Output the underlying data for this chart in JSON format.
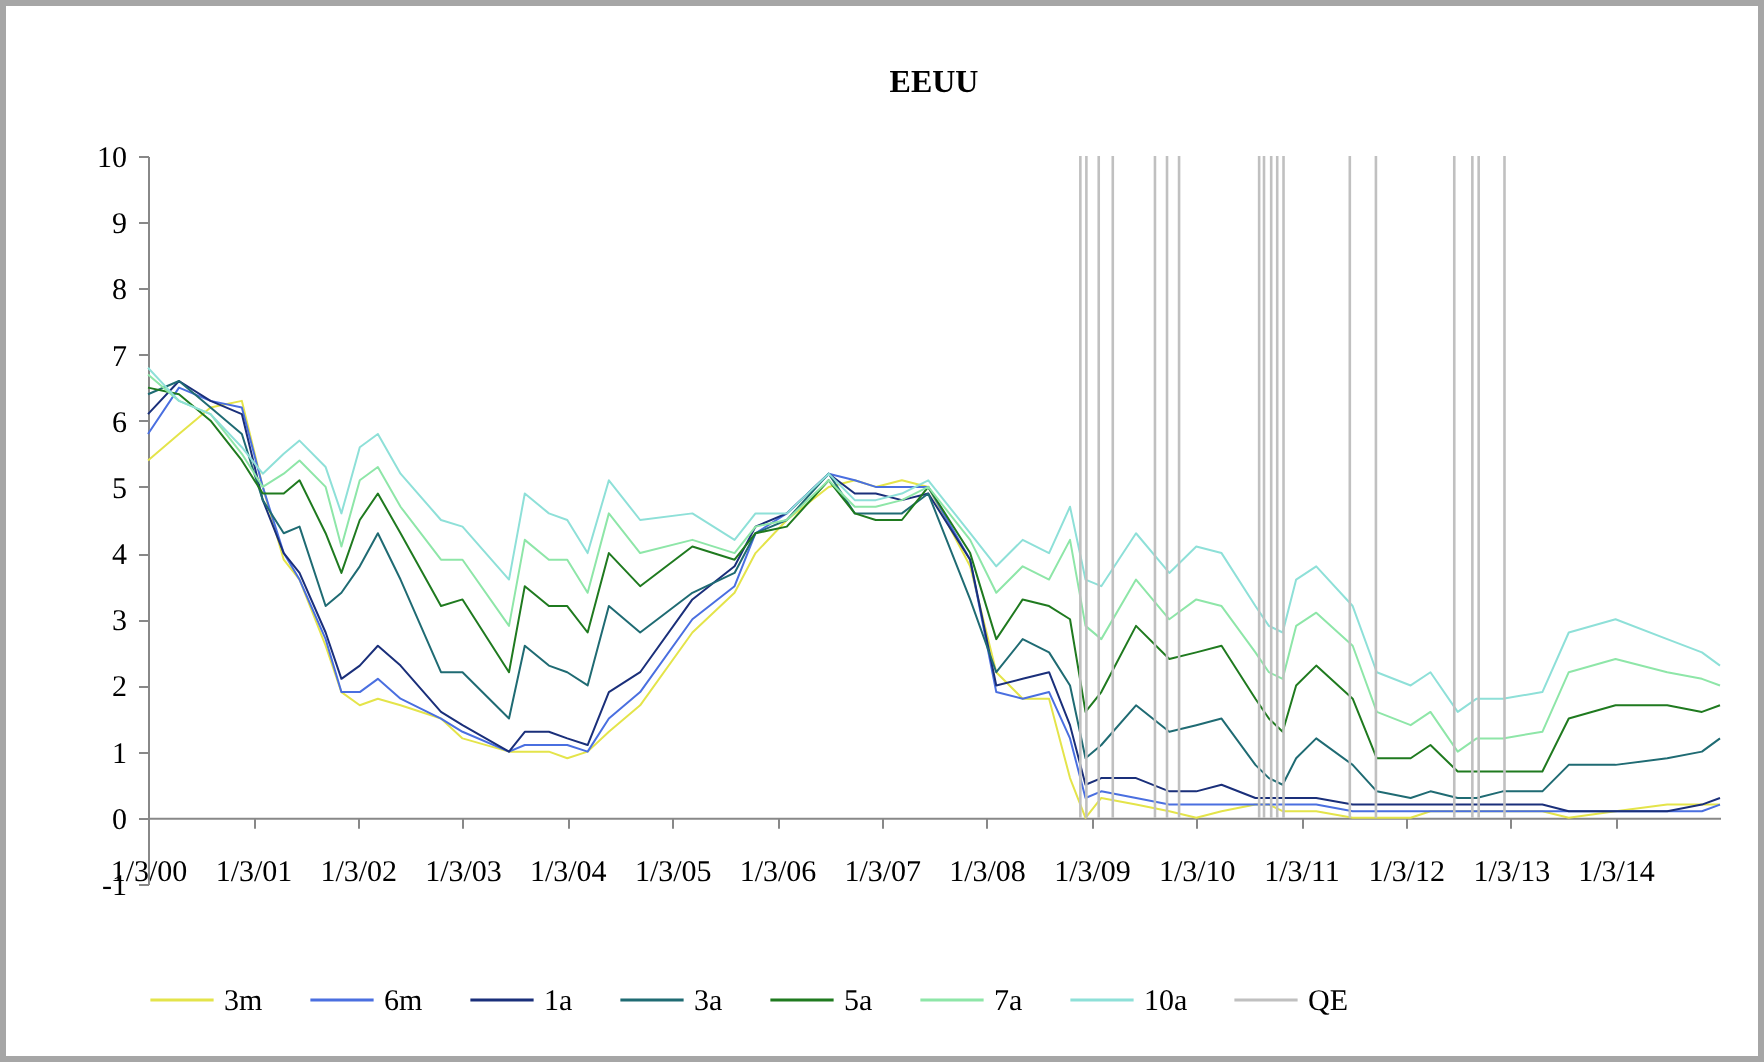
{
  "chart_data": {
    "type": "line",
    "title": "EEUU",
    "x": [
      "2000-01-03",
      "2000-04-20",
      "2000-08-08",
      "2000-11-25",
      "2001-02-06",
      "2001-04-20",
      "2001-06-14",
      "2001-09-13",
      "2001-11-07",
      "2002-01-10",
      "2002-03-14",
      "2002-06-01",
      "2002-10-20",
      "2003-01-03",
      "2003-06-14",
      "2003-08-08",
      "2003-10-31",
      "2004-01-03",
      "2004-03-14",
      "2004-05-27",
      "2004-09-13",
      "2005-03-14",
      "2005-08-08",
      "2005-10-20",
      "2006-02-06",
      "2006-07-02",
      "2006-10-01",
      "2006-12-13",
      "2007-03-14",
      "2007-06-14",
      "2007-11-07",
      "2008-02-06",
      "2008-05-08",
      "2008-08-08",
      "2008-10-20",
      "2008-12-13",
      "2009-02-06",
      "2009-06-07",
      "2009-10-01",
      "2010-01-03",
      "2010-04-01",
      "2010-07-28",
      "2010-09-13",
      "2010-10-31",
      "2010-12-17",
      "2011-02-25",
      "2011-07-02",
      "2011-09-24",
      "2012-01-20",
      "2012-03-29",
      "2012-07-02",
      "2012-09-06",
      "2012-12-06",
      "2013-04-23",
      "2013-07-24",
      "2014-01-03",
      "2014-07-02",
      "2014-10-31",
      "2015-01-02"
    ],
    "series": [
      {
        "name": "3m",
        "color": "#e4e44a",
        "values": [
          5.4,
          5.8,
          6.2,
          6.3,
          5.0,
          3.9,
          3.6,
          2.6,
          1.9,
          1.7,
          1.8,
          1.7,
          1.5,
          1.2,
          1.0,
          1.0,
          1.0,
          0.9,
          1.0,
          1.3,
          1.7,
          2.8,
          3.4,
          4.0,
          4.5,
          5.0,
          5.1,
          5.0,
          5.1,
          5.0,
          3.8,
          2.2,
          1.8,
          1.8,
          0.6,
          0.0,
          0.3,
          0.2,
          0.1,
          0.0,
          0.1,
          0.2,
          0.2,
          0.1,
          0.1,
          0.1,
          0.0,
          0.0,
          0.0,
          0.1,
          0.1,
          0.1,
          0.1,
          0.1,
          0.0,
          0.1,
          0.2,
          0.2,
          0.2
        ]
      },
      {
        "name": "6m",
        "color": "#4a6fe0",
        "values": [
          5.8,
          6.5,
          6.3,
          6.2,
          5.0,
          4.0,
          3.6,
          2.7,
          1.9,
          1.9,
          2.1,
          1.8,
          1.5,
          1.3,
          1.0,
          1.1,
          1.1,
          1.1,
          1.0,
          1.5,
          1.9,
          3.0,
          3.5,
          4.3,
          4.6,
          5.2,
          5.1,
          5.0,
          5.0,
          5.0,
          3.9,
          1.9,
          1.8,
          1.9,
          1.2,
          0.3,
          0.4,
          0.3,
          0.2,
          0.2,
          0.2,
          0.2,
          0.2,
          0.2,
          0.2,
          0.2,
          0.1,
          0.1,
          0.1,
          0.1,
          0.1,
          0.1,
          0.1,
          0.1,
          0.1,
          0.1,
          0.1,
          0.1,
          0.2
        ]
      },
      {
        "name": "1a",
        "color": "#1a2f7a",
        "values": [
          6.1,
          6.6,
          6.3,
          6.1,
          4.8,
          4.0,
          3.7,
          2.8,
          2.1,
          2.3,
          2.6,
          2.3,
          1.6,
          1.4,
          1.0,
          1.3,
          1.3,
          1.2,
          1.1,
          1.9,
          2.2,
          3.3,
          3.8,
          4.4,
          4.6,
          5.2,
          4.9,
          4.9,
          4.8,
          4.9,
          3.9,
          2.0,
          2.1,
          2.2,
          1.4,
          0.5,
          0.6,
          0.6,
          0.4,
          0.4,
          0.5,
          0.3,
          0.3,
          0.3,
          0.3,
          0.3,
          0.2,
          0.2,
          0.2,
          0.2,
          0.2,
          0.2,
          0.2,
          0.2,
          0.1,
          0.1,
          0.1,
          0.2,
          0.3
        ]
      },
      {
        "name": "3a",
        "color": "#1f6b73",
        "values": [
          6.4,
          6.6,
          6.2,
          5.8,
          4.8,
          4.3,
          4.4,
          3.2,
          3.4,
          3.8,
          4.3,
          3.6,
          2.2,
          2.2,
          1.5,
          2.6,
          2.3,
          2.2,
          2.0,
          3.2,
          2.8,
          3.4,
          3.7,
          4.3,
          4.5,
          5.2,
          4.6,
          4.6,
          4.6,
          4.9,
          3.3,
          2.2,
          2.7,
          2.5,
          2.0,
          0.9,
          1.1,
          1.7,
          1.3,
          1.4,
          1.5,
          0.8,
          0.6,
          0.5,
          0.9,
          1.2,
          0.8,
          0.4,
          0.3,
          0.4,
          0.3,
          0.3,
          0.4,
          0.4,
          0.8,
          0.8,
          0.9,
          1.0,
          1.2
        ]
      },
      {
        "name": "5a",
        "color": "#1f7a1f",
        "values": [
          6.5,
          6.4,
          6.0,
          5.4,
          4.9,
          4.9,
          5.1,
          4.3,
          3.7,
          4.5,
          4.9,
          4.3,
          3.2,
          3.3,
          2.2,
          3.5,
          3.2,
          3.2,
          2.8,
          4.0,
          3.5,
          4.1,
          3.9,
          4.3,
          4.4,
          5.1,
          4.6,
          4.5,
          4.5,
          5.0,
          4.0,
          2.7,
          3.3,
          3.2,
          3.0,
          1.6,
          1.9,
          2.9,
          2.4,
          2.5,
          2.6,
          1.8,
          1.5,
          1.3,
          2.0,
          2.3,
          1.8,
          0.9,
          0.9,
          1.1,
          0.7,
          0.7,
          0.7,
          0.7,
          1.5,
          1.7,
          1.7,
          1.6,
          1.7
        ]
      },
      {
        "name": "7a",
        "color": "#8ee6a8",
        "values": [
          6.7,
          6.3,
          6.1,
          5.5,
          5.0,
          5.2,
          5.4,
          5.0,
          4.1,
          5.1,
          5.3,
          4.7,
          3.9,
          3.9,
          2.9,
          4.2,
          3.9,
          3.9,
          3.4,
          4.6,
          4.0,
          4.2,
          4.0,
          4.4,
          4.5,
          5.1,
          4.7,
          4.7,
          4.8,
          5.0,
          4.2,
          3.4,
          3.8,
          3.6,
          4.2,
          2.9,
          2.7,
          3.6,
          3.0,
          3.3,
          3.2,
          2.5,
          2.2,
          2.1,
          2.9,
          3.1,
          2.6,
          1.6,
          1.4,
          1.6,
          1.0,
          1.2,
          1.2,
          1.3,
          2.2,
          2.4,
          2.2,
          2.1,
          2.0
        ]
      },
      {
        "name": "10a",
        "color": "#8ee0d8",
        "values": [
          6.8,
          6.3,
          6.1,
          5.6,
          5.2,
          5.5,
          5.7,
          5.3,
          4.6,
          5.6,
          5.8,
          5.2,
          4.5,
          4.4,
          3.6,
          4.9,
          4.6,
          4.5,
          4.0,
          5.1,
          4.5,
          4.6,
          4.2,
          4.6,
          4.6,
          5.2,
          4.8,
          4.8,
          4.9,
          5.1,
          4.3,
          3.8,
          4.2,
          4.0,
          4.7,
          3.6,
          3.5,
          4.3,
          3.7,
          4.1,
          4.0,
          3.2,
          2.9,
          2.8,
          3.6,
          3.8,
          3.2,
          2.2,
          2.0,
          2.2,
          1.6,
          1.8,
          1.8,
          1.9,
          2.8,
          3.0,
          2.7,
          2.5,
          2.3
        ]
      }
    ],
    "ref_lines": [
      {
        "axis": "x",
        "value": "2008-11-25",
        "label": "QE",
        "color": "#c0c0c0"
      },
      {
        "axis": "x",
        "value": "2008-12-16",
        "color": "#c0c0c0"
      },
      {
        "axis": "x",
        "value": "2009-01-28",
        "color": "#c0c0c0"
      },
      {
        "axis": "x",
        "value": "2009-03-18",
        "color": "#c0c0c0"
      },
      {
        "axis": "x",
        "value": "2009-08-12",
        "color": "#c0c0c0"
      },
      {
        "axis": "x",
        "value": "2009-09-23",
        "color": "#c0c0c0"
      },
      {
        "axis": "x",
        "value": "2009-11-04",
        "color": "#c0c0c0"
      },
      {
        "axis": "x",
        "value": "2010-08-10",
        "color": "#c0c0c0"
      },
      {
        "axis": "x",
        "value": "2010-08-27",
        "color": "#c0c0c0"
      },
      {
        "axis": "x",
        "value": "2010-09-21",
        "color": "#c0c0c0"
      },
      {
        "axis": "x",
        "value": "2010-10-12",
        "color": "#c0c0c0"
      },
      {
        "axis": "x",
        "value": "2010-11-03",
        "color": "#c0c0c0"
      },
      {
        "axis": "x",
        "value": "2011-06-22",
        "color": "#c0c0c0"
      },
      {
        "axis": "x",
        "value": "2011-09-21",
        "color": "#c0c0c0"
      },
      {
        "axis": "x",
        "value": "2012-06-20",
        "color": "#c0c0c0"
      },
      {
        "axis": "x",
        "value": "2012-08-22",
        "color": "#c0c0c0"
      },
      {
        "axis": "x",
        "value": "2012-09-13",
        "color": "#c0c0c0"
      },
      {
        "axis": "x",
        "value": "2012-12-12",
        "color": "#c0c0c0"
      }
    ],
    "xlim": [
      "2000-01-03",
      "2015-01-02"
    ],
    "xticks": [
      {
        "value": "2000-01-03",
        "label": "1/3/00"
      },
      {
        "value": "2001-01-03",
        "label": "1/3/01"
      },
      {
        "value": "2002-01-03",
        "label": "1/3/02"
      },
      {
        "value": "2003-01-03",
        "label": "1/3/03"
      },
      {
        "value": "2004-01-03",
        "label": "1/3/04"
      },
      {
        "value": "2005-01-03",
        "label": "1/3/05"
      },
      {
        "value": "2006-01-03",
        "label": "1/3/06"
      },
      {
        "value": "2007-01-03",
        "label": "1/3/07"
      },
      {
        "value": "2008-01-03",
        "label": "1/3/08"
      },
      {
        "value": "2009-01-03",
        "label": "1/3/09"
      },
      {
        "value": "2010-01-03",
        "label": "1/3/10"
      },
      {
        "value": "2011-01-03",
        "label": "1/3/11"
      },
      {
        "value": "2012-01-03",
        "label": "1/3/12"
      },
      {
        "value": "2013-01-03",
        "label": "1/3/13"
      },
      {
        "value": "2014-01-03",
        "label": "1/3/14"
      }
    ],
    "ylim": [
      -1,
      10
    ],
    "yticks": [
      -1,
      0,
      1,
      2,
      3,
      4,
      5,
      6,
      7,
      8,
      9,
      10
    ],
    "legend": "bottom"
  }
}
